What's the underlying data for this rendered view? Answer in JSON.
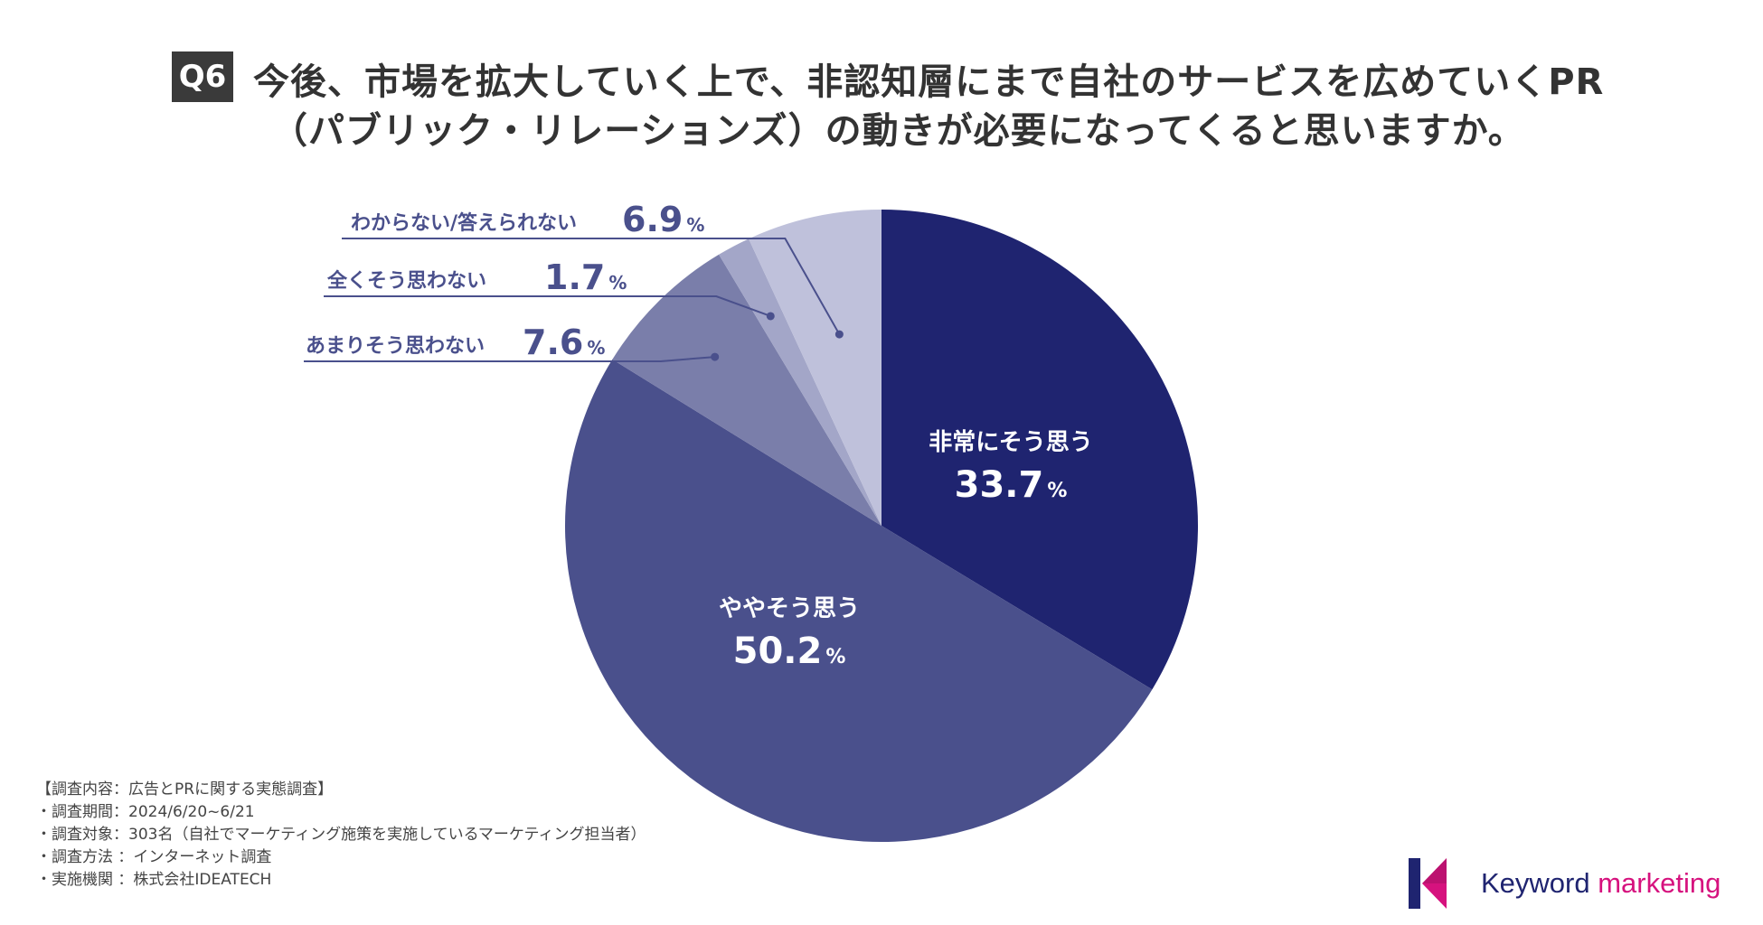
{
  "question": {
    "badge": "Q6",
    "title_line1": "今後、市場を拡大していく上で、非認知層にまで自社のサービスを広めていくPR",
    "title_line2": "（パブリック・リレーションズ）の動きが必要になってくると思いますか。"
  },
  "chart_data": {
    "type": "pie",
    "title": "今後、市場を拡大していく上で、非認知層にまで自社のサービスを広めていくPR（パブリック・リレーションズ）の動きが必要になってくると思いますか。",
    "unit": "%",
    "slices": [
      {
        "label": "非常にそう思う",
        "value": 33.7,
        "display": "33.7",
        "color": "#1f2470"
      },
      {
        "label": "ややそう思う",
        "value": 50.2,
        "display": "50.2",
        "color": "#4a508c"
      },
      {
        "label": "あまりそう思わない",
        "value": 7.6,
        "display": "7.6",
        "color": "#7a7eaa"
      },
      {
        "label": "全くそう思わない",
        "value": 1.7,
        "display": "1.7",
        "color": "#a3a6c8"
      },
      {
        "label": "わからない/答えられない",
        "value": 6.9,
        "display": "6.9",
        "color": "#bfc1db"
      }
    ]
  },
  "footnotes": [
    "【調査内容：広告とPRに関する実態調査】",
    "・調査期間：2024/6/20~6/21",
    "・調査対象：303名（自社でマーケティング施策を実施しているマーケティング担当者）",
    "・調査方法 ：インターネット調査",
    "・実施機関 ：株式会社IDEATECH"
  ],
  "logo": {
    "word1": "Keyword",
    "word2": "marketing",
    "colors": {
      "navy": "#1f2470",
      "magenta": "#d6127e"
    }
  }
}
